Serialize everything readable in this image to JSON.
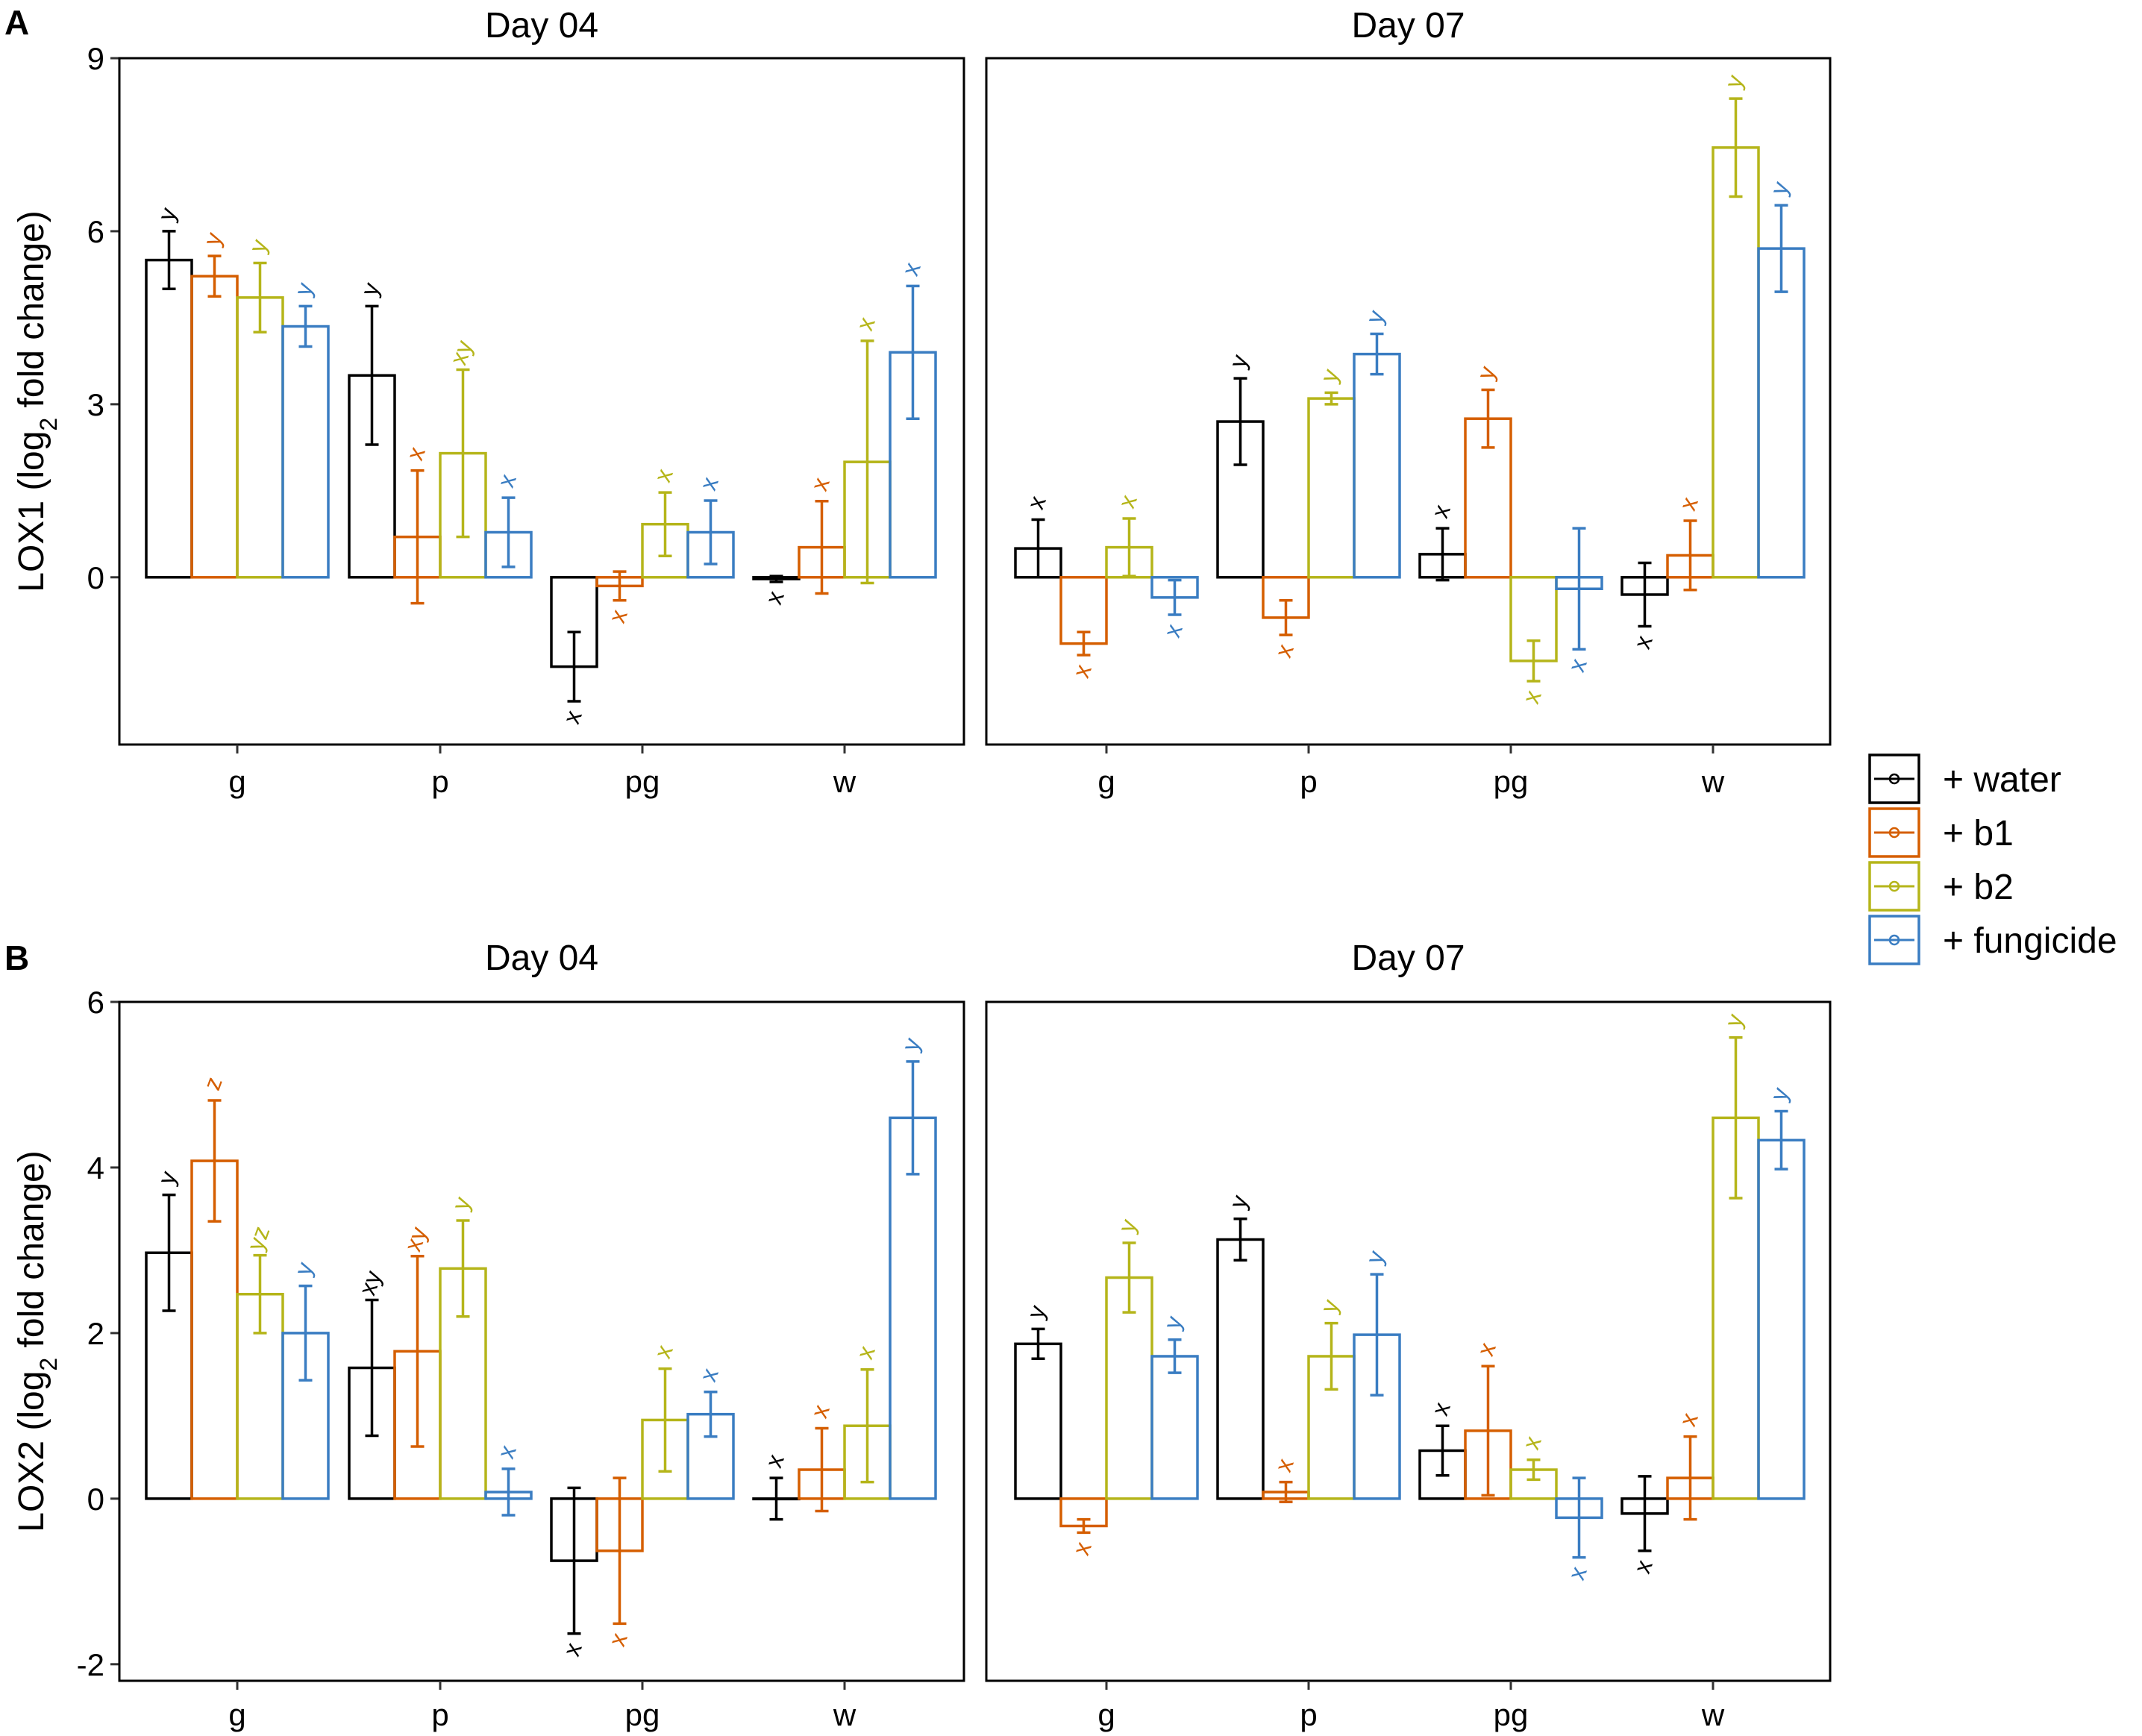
{
  "legend": [
    {
      "key": "water",
      "label": "+ water",
      "color": "#000000"
    },
    {
      "key": "b1",
      "label": "+ b1",
      "color": "#D55E00"
    },
    {
      "key": "b2",
      "label": "+ b2",
      "color": "#B5B51A"
    },
    {
      "key": "fungicide",
      "label": "+ fungicide",
      "color": "#3A7DC2"
    }
  ],
  "chart_data": [
    {
      "type": "bar",
      "panel_label": "A",
      "ylabel": "LOX1 (log2 fold change)",
      "ylabel_main": "LOX1 (log",
      "ylabel_sub": "2",
      "ylabel_tail": " fold change)",
      "ylim": [
        -2.9,
        9.0
      ],
      "yticks": [
        0,
        3,
        6,
        9
      ],
      "ytick_labels": [
        "0",
        "3",
        "6",
        "9"
      ],
      "categories": [
        "g",
        "p",
        "pg",
        "w"
      ],
      "facets": [
        {
          "title": "Day 04",
          "series": [
            {
              "name": "+ water",
              "values": [
                5.5,
                3.5,
                -1.55,
                -0.03
              ],
              "errors": [
                0.5,
                1.2,
                0.6,
                0.05
              ],
              "labels": [
                "y",
                "y",
                "x",
                "x"
              ]
            },
            {
              "name": "+ b1",
              "values": [
                5.22,
                0.7,
                -0.15,
                0.52
              ],
              "errors": [
                0.35,
                1.15,
                0.25,
                0.8
              ],
              "labels": [
                "y",
                "x",
                "x",
                "x"
              ]
            },
            {
              "name": "+ b2",
              "values": [
                4.85,
                2.15,
                0.92,
                2.0
              ],
              "errors": [
                0.6,
                1.45,
                0.55,
                2.1
              ],
              "labels": [
                "y",
                "xy",
                "x",
                "x"
              ]
            },
            {
              "name": "+ fungicide",
              "values": [
                4.35,
                0.78,
                0.78,
                3.9
              ],
              "errors": [
                0.35,
                0.6,
                0.55,
                1.15
              ],
              "labels": [
                "y",
                "x",
                "x",
                "x"
              ]
            }
          ]
        },
        {
          "title": "Day 07",
          "series": [
            {
              "name": "+ water",
              "values": [
                0.5,
                2.7,
                0.4,
                -0.3
              ],
              "errors": [
                0.5,
                0.75,
                0.45,
                0.55
              ],
              "labels": [
                "x",
                "y",
                "x",
                "x"
              ]
            },
            {
              "name": "+ b1",
              "values": [
                -1.15,
                -0.7,
                2.75,
                0.38
              ],
              "errors": [
                0.2,
                0.3,
                0.5,
                0.6
              ],
              "labels": [
                "x",
                "x",
                "y",
                "x"
              ]
            },
            {
              "name": "+ b2",
              "values": [
                0.52,
                3.1,
                -1.45,
                7.45
              ],
              "errors": [
                0.5,
                0.1,
                0.35,
                0.85
              ],
              "labels": [
                "x",
                "y",
                "x",
                "y"
              ]
            },
            {
              "name": "+ fungicide",
              "values": [
                -0.35,
                3.87,
                -0.2,
                5.7
              ],
              "errors": [
                0.3,
                0.35,
                1.05,
                0.75
              ],
              "labels": [
                "x",
                "y",
                "x",
                "y"
              ]
            }
          ]
        }
      ]
    },
    {
      "type": "bar",
      "panel_label": "B",
      "ylabel": "LOX2 (log2 fold change)",
      "ylabel_main": "LOX2 (log",
      "ylabel_sub": "2",
      "ylabel_tail": " fold change)",
      "ylim": [
        -2.2,
        6.0
      ],
      "yticks": [
        -2,
        0,
        2,
        4,
        6
      ],
      "ytick_labels": [
        "-2",
        "0",
        "2",
        "4",
        "6"
      ],
      "categories": [
        "g",
        "p",
        "pg",
        "w"
      ],
      "facets": [
        {
          "title": "Day 04",
          "series": [
            {
              "name": "+ water",
              "values": [
                2.97,
                1.58,
                -0.75,
                0.0
              ],
              "errors": [
                0.7,
                0.82,
                0.88,
                0.25
              ],
              "labels": [
                "y",
                "xy",
                "x",
                "x"
              ]
            },
            {
              "name": "+ b1",
              "values": [
                4.08,
                1.78,
                -0.63,
                0.35
              ],
              "errors": [
                0.73,
                1.15,
                0.88,
                0.5
              ],
              "labels": [
                "z",
                "xy",
                "x",
                "x"
              ]
            },
            {
              "name": "+ b2",
              "values": [
                2.47,
                2.78,
                0.95,
                0.88
              ],
              "errors": [
                0.47,
                0.58,
                0.62,
                0.68
              ],
              "labels": [
                "yz",
                "y",
                "x",
                "x"
              ]
            },
            {
              "name": "+ fungicide",
              "values": [
                2.0,
                0.08,
                1.02,
                4.6
              ],
              "errors": [
                0.57,
                0.28,
                0.27,
                0.68
              ],
              "labels": [
                "y",
                "x",
                "x",
                "y"
              ]
            }
          ]
        },
        {
          "title": "Day 07",
          "series": [
            {
              "name": "+ water",
              "values": [
                1.87,
                3.13,
                0.58,
                -0.18
              ],
              "errors": [
                0.18,
                0.25,
                0.3,
                0.45
              ],
              "labels": [
                "y",
                "y",
                "x",
                "x"
              ]
            },
            {
              "name": "+ b1",
              "values": [
                -0.33,
                0.08,
                0.82,
                0.25
              ],
              "errors": [
                0.08,
                0.12,
                0.78,
                0.5
              ],
              "labels": [
                "x",
                "x",
                "x",
                "x"
              ]
            },
            {
              "name": "+ b2",
              "values": [
                2.67,
                1.72,
                0.35,
                4.6
              ],
              "errors": [
                0.42,
                0.4,
                0.12,
                0.97
              ],
              "labels": [
                "y",
                "y",
                "x",
                "y"
              ]
            },
            {
              "name": "+ fungicide",
              "values": [
                1.72,
                1.98,
                -0.23,
                4.33
              ],
              "errors": [
                0.2,
                0.73,
                0.48,
                0.35
              ],
              "labels": [
                "y",
                "y",
                "x",
                "y"
              ]
            }
          ]
        }
      ]
    }
  ]
}
